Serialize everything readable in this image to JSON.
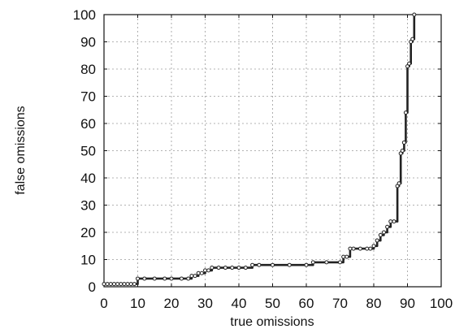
{
  "chart_data": {
    "type": "line",
    "title": "",
    "xlabel": "true omissions",
    "ylabel": "false omissions",
    "xlim": [
      0,
      100
    ],
    "ylim": [
      0,
      100
    ],
    "x_ticks": [
      "0",
      "10",
      "20",
      "30",
      "40",
      "50",
      "60",
      "70",
      "80",
      "90",
      "100"
    ],
    "y_ticks": [
      "0",
      "10",
      "20",
      "30",
      "40",
      "50",
      "60",
      "70",
      "80",
      "90",
      "100"
    ],
    "grid": true,
    "legend": "none",
    "series": [
      {
        "color": "#222222",
        "marker": "small-circle",
        "x": [
          0,
          1,
          2,
          3,
          4,
          5,
          6,
          7,
          8,
          9,
          10,
          12,
          15,
          18,
          20,
          23,
          25,
          26,
          27,
          28,
          29,
          30,
          31,
          32,
          34,
          36,
          38,
          40,
          42,
          44,
          46,
          50,
          55,
          60,
          62,
          66,
          70,
          71,
          72,
          73,
          74,
          76,
          78,
          79,
          80,
          81,
          82,
          83,
          84,
          85,
          86,
          87,
          87.5,
          88,
          88.5,
          89,
          89.5,
          90,
          90.5,
          91,
          91.5,
          92
        ],
        "y": [
          1,
          1,
          1,
          1,
          1,
          1,
          1,
          1,
          1,
          1,
          3,
          3,
          3,
          3,
          3,
          3,
          3,
          4,
          4,
          5,
          5,
          6,
          6,
          7,
          7,
          7,
          7,
          7,
          7,
          8,
          8,
          8,
          8,
          8,
          9,
          9,
          9,
          11,
          11,
          14,
          14,
          14,
          14,
          14,
          15,
          17,
          19,
          20,
          22,
          24,
          24,
          37,
          38,
          49,
          50,
          53,
          64,
          81,
          82,
          90,
          91,
          100
        ]
      }
    ]
  }
}
